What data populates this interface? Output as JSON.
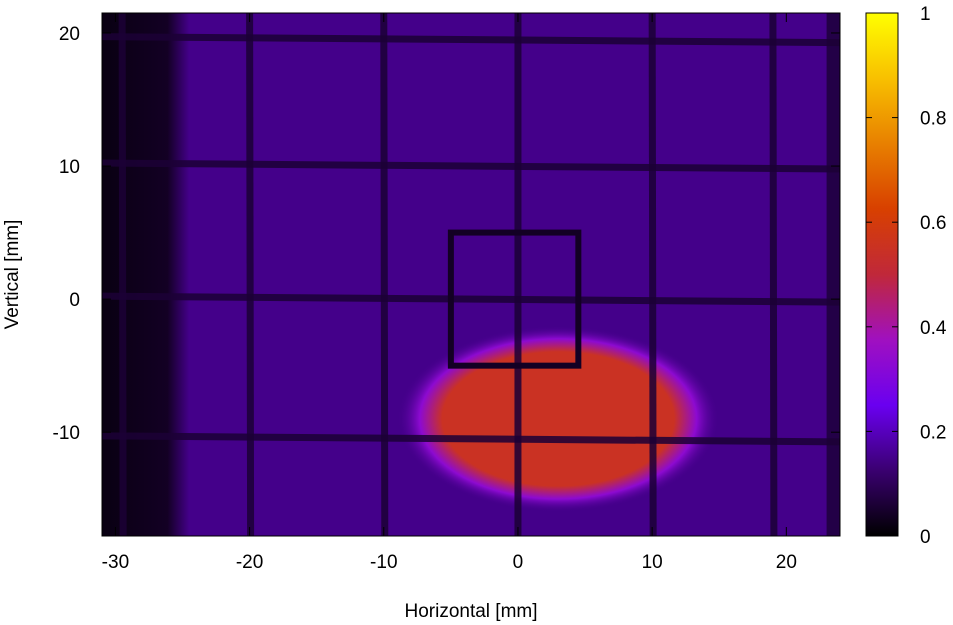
{
  "chart_data": {
    "type": "heatmap",
    "title": "",
    "xlabel": "Horizontal [mm]",
    "ylabel": "Vertical [mm]",
    "xlim": [
      -31,
      24
    ],
    "ylim": [
      -17.8,
      21.5
    ],
    "xticks": [
      -30,
      -20,
      -10,
      0,
      10,
      20
    ],
    "xtick_labels": [
      "-30",
      "-20",
      "-10",
      "0",
      "10",
      "20"
    ],
    "yticks": [
      20,
      10,
      0,
      -10
    ],
    "ytick_labels": [
      "20",
      "10",
      "0",
      "-10"
    ],
    "colorbar": {
      "range": [
        0,
        1
      ],
      "ticks": [
        0,
        0.2,
        0.4,
        0.6,
        0.8,
        1
      ],
      "tick_labels": [
        "0",
        "0.2",
        "0.4",
        "0.6",
        "0.8",
        "1"
      ],
      "colormap": [
        "#000000",
        "#3a0070",
        "#6a00f0",
        "#a010c0",
        "#c0283a",
        "#d84000",
        "#e88000",
        "#f8c000",
        "#ffff00"
      ]
    },
    "background_level": 0.15,
    "dark_edge": {
      "x_from": -31,
      "x_to": -24.5,
      "level": 0.02
    },
    "right_edge": {
      "x_from": 23,
      "x_to": 24,
      "level": 0.06
    },
    "beam_spot": {
      "center": [
        3,
        -9
      ],
      "radius_x": 12,
      "radius_y": 7,
      "peak_level": 0.55
    },
    "grid_wires_vertical_x": [
      -29.5,
      -20,
      -10,
      0,
      10,
      19
    ],
    "grid_wires_horizontal_y": [
      19.5,
      10,
      0,
      -10.5
    ],
    "grid_wire_level": 0.06,
    "aperture_frame": {
      "x_range": [
        -5,
        4.5
      ],
      "y_range": [
        -5,
        5
      ],
      "level": 0.04
    }
  }
}
